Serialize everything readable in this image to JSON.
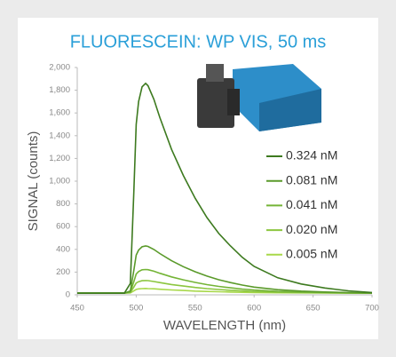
{
  "chart_data": {
    "type": "line",
    "title": "FLUORESCEIN: WP VIS, 50 ms",
    "x_label": "WAVELENGTH (nm)",
    "y_label": "SIGNAL (counts)",
    "x": [
      450,
      460,
      470,
      480,
      490,
      495,
      498,
      500,
      502,
      505,
      508,
      510,
      515,
      520,
      530,
      540,
      550,
      560,
      570,
      580,
      590,
      600,
      620,
      640,
      660,
      680,
      700
    ],
    "series": [
      {
        "name": "0.324 nM",
        "color": "#3d7a1f",
        "values": [
          15,
          15,
          15,
          15,
          15,
          100,
          900,
          1500,
          1700,
          1830,
          1860,
          1840,
          1720,
          1560,
          1280,
          1050,
          850,
          680,
          540,
          430,
          330,
          250,
          150,
          95,
          60,
          35,
          20
        ]
      },
      {
        "name": "0.081 nM",
        "color": "#5a9a2a",
        "values": [
          15,
          15,
          15,
          15,
          15,
          34,
          214,
          349,
          394,
          423,
          430,
          426,
          399,
          363,
          300,
          248,
          203,
          165,
          133,
          108,
          86,
          68,
          45,
          33,
          25,
          20,
          16
        ]
      },
      {
        "name": "0.041 nM",
        "color": "#74b436",
        "values": [
          15,
          15,
          15,
          15,
          15,
          25,
          115,
          183,
          205,
          220,
          223,
          221,
          208,
          190,
          158,
          132,
          109,
          90,
          74,
          62,
          51,
          42,
          30,
          24,
          20,
          17,
          16
        ]
      },
      {
        "name": "0.020 nM",
        "color": "#8cc63f",
        "values": [
          15,
          15,
          15,
          15,
          15,
          20,
          68,
          104,
          116,
          124,
          126,
          125,
          117,
          108,
          91,
          77,
          65,
          55,
          47,
          40,
          34,
          29,
          23,
          20,
          18,
          16,
          15
        ]
      },
      {
        "name": "0.005 nM",
        "color": "#a8d84a",
        "values": [
          15,
          15,
          15,
          15,
          15,
          17,
          34,
          48,
          52,
          55,
          56,
          55,
          53,
          49,
          43,
          38,
          33,
          30,
          27,
          24,
          22,
          20,
          18,
          17,
          16,
          15,
          15
        ]
      }
    ],
    "xlim": [
      450,
      700
    ],
    "xticks": [
      450,
      500,
      550,
      600,
      650,
      700
    ],
    "ylim": [
      0,
      2000
    ],
    "yticks": [
      0,
      200,
      400,
      600,
      800,
      {
        "value": 1000,
        "label": "1,000"
      },
      {
        "value": 1200,
        "label": "1,200"
      },
      {
        "value": 1400,
        "label": "1,400"
      },
      {
        "value": 1600,
        "label": "1,600"
      },
      {
        "value": 1800,
        "label": "1,800"
      },
      {
        "value": 2000,
        "label": "2,000"
      }
    ],
    "grid": false
  }
}
